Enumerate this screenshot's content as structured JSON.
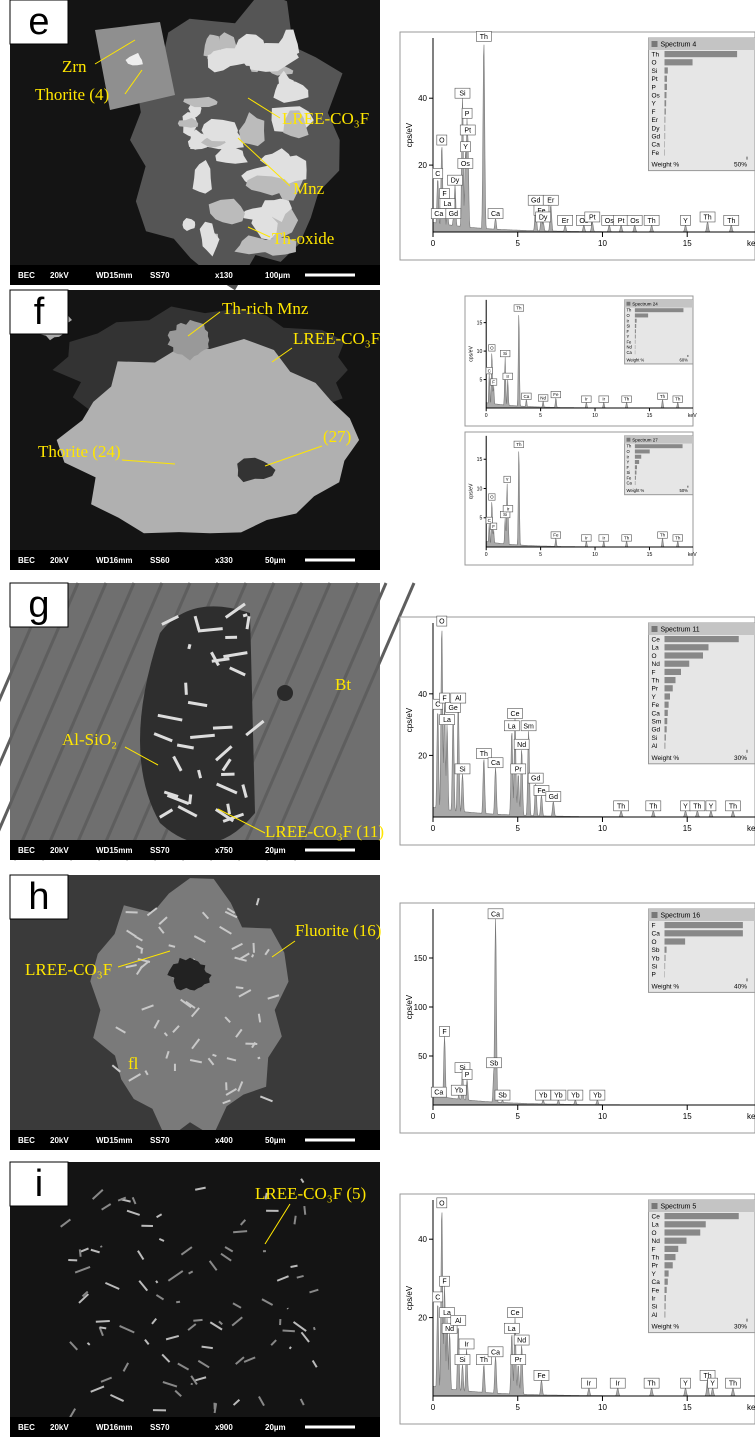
{
  "panels": [
    {
      "letter": "e",
      "image": {
        "labels": [
          "Zrn",
          "Thorite (4)",
          "LREE-CO₃F",
          "Mnz",
          "Th-oxide"
        ],
        "footer": [
          "BEC",
          "20kV",
          "WD15mm",
          "SS70",
          "x130",
          "100µm"
        ]
      },
      "spectra": [
        {
          "title": "Spectrum 4",
          "ylabel": "cps/eV",
          "xunit": "keV",
          "xlim": [
            0,
            19
          ],
          "xticks": [
            0,
            5,
            10,
            15
          ],
          "ylim": [
            0,
            58
          ],
          "yticks": [
            20,
            40
          ],
          "peaks": [
            {
              "label": "C",
              "x": 0.28,
              "y": 16
            },
            {
              "label": "O",
              "x": 0.52,
              "y": 26
            },
            {
              "label": "F",
              "x": 0.68,
              "y": 10
            },
            {
              "label": "La",
              "x": 0.85,
              "y": 7
            },
            {
              "label": "Ca",
              "x": 0.34,
              "y": 4
            },
            {
              "label": "Gd",
              "x": 1.2,
              "y": 4
            },
            {
              "label": "Dy",
              "x": 1.3,
              "y": 14
            },
            {
              "label": "Si",
              "x": 1.74,
              "y": 40
            },
            {
              "label": "P",
              "x": 2.01,
              "y": 34
            },
            {
              "label": "Pt",
              "x": 2.05,
              "y": 29
            },
            {
              "label": "Y",
              "x": 1.92,
              "y": 24
            },
            {
              "label": "Os",
              "x": 1.91,
              "y": 19
            },
            {
              "label": "Th",
              "x": 3.0,
              "y": 57
            },
            {
              "label": "Ca",
              "x": 3.69,
              "y": 4
            },
            {
              "label": "Gd",
              "x": 6.06,
              "y": 8
            },
            {
              "label": "Er",
              "x": 6.95,
              "y": 8
            },
            {
              "label": "Fe",
              "x": 6.4,
              "y": 5
            },
            {
              "label": "Dy",
              "x": 6.5,
              "y": 3
            },
            {
              "label": "Er",
              "x": 7.8,
              "y": 2
            },
            {
              "label": "Os",
              "x": 8.9,
              "y": 2
            },
            {
              "label": "Pt",
              "x": 9.4,
              "y": 3
            },
            {
              "label": "Os",
              "x": 10.4,
              "y": 2
            },
            {
              "label": "Pt",
              "x": 11.1,
              "y": 2
            },
            {
              "label": "Os",
              "x": 11.9,
              "y": 2
            },
            {
              "label": "Th",
              "x": 12.9,
              "y": 2
            },
            {
              "label": "Y",
              "x": 14.9,
              "y": 2
            },
            {
              "label": "Th",
              "x": 16.2,
              "y": 3
            },
            {
              "label": "Th",
              "x": 17.6,
              "y": 2
            }
          ],
          "elements": [
            "Th",
            "O",
            "Si",
            "Pt",
            "P",
            "Os",
            "Y",
            "F",
            "Er",
            "Dy",
            "Gd",
            "Ca",
            "Fe"
          ],
          "weights": [
            44,
            17,
            2,
            1.5,
            1.5,
            1.2,
            1,
            0.8,
            0.5,
            0.4,
            0.4,
            0.3,
            0.3
          ],
          "weight_label": "Weight %",
          "weight_scale": {
            "value": 50,
            "label": "50%"
          }
        }
      ]
    },
    {
      "letter": "f",
      "image": {
        "labels": [
          "Th-rich Mnz",
          "LREE-CO₃F",
          "Thorite (24)",
          "(27)"
        ],
        "footer": [
          "BEC",
          "20kV",
          "WD16mm",
          "SS60",
          "x330",
          "50µm"
        ]
      },
      "spectra": [
        {
          "title": "Spectrum 24",
          "ylabel": "cps/eV",
          "xunit": "keV",
          "xlim": [
            0,
            19
          ],
          "xticks": [
            0,
            5,
            10,
            15
          ],
          "ylim": [
            0,
            19
          ],
          "yticks": [
            5,
            10,
            15
          ],
          "peaks": [
            {
              "label": "C",
              "x": 0.28,
              "y": 6
            },
            {
              "label": "O",
              "x": 0.52,
              "y": 10
            },
            {
              "label": "F",
              "x": 0.68,
              "y": 4
            },
            {
              "label": "Si",
              "x": 1.74,
              "y": 9
            },
            {
              "label": "Ir",
              "x": 1.98,
              "y": 5
            },
            {
              "label": "Th",
              "x": 3.0,
              "y": 17
            },
            {
              "label": "Ca",
              "x": 3.69,
              "y": 1.5
            },
            {
              "label": "Nd",
              "x": 5.23,
              "y": 1.2
            },
            {
              "label": "Fe",
              "x": 6.4,
              "y": 1.8
            },
            {
              "label": "Ir",
              "x": 9.2,
              "y": 1
            },
            {
              "label": "Ir",
              "x": 10.8,
              "y": 1
            },
            {
              "label": "Th",
              "x": 12.9,
              "y": 1
            },
            {
              "label": "Th",
              "x": 16.2,
              "y": 1.5
            },
            {
              "label": "Th",
              "x": 17.6,
              "y": 1
            }
          ],
          "elements": [
            "Th",
            "O",
            "Ir",
            "Si",
            "F",
            "Y",
            "Fe",
            "Nd",
            "Ca"
          ],
          "weights": [
            55,
            15,
            2,
            1.5,
            1.2,
            1,
            0.6,
            0.5,
            0.4
          ],
          "weight_label": "Weight %",
          "weight_scale": {
            "value": 60,
            "label": "60%"
          }
        },
        {
          "title": "Spectrum 27",
          "ylabel": "cps/eV",
          "xunit": "keV",
          "xlim": [
            0,
            19
          ],
          "xticks": [
            0,
            5,
            10,
            15
          ],
          "ylim": [
            0,
            19
          ],
          "yticks": [
            5,
            10,
            15
          ],
          "peaks": [
            {
              "label": "C",
              "x": 0.28,
              "y": 4
            },
            {
              "label": "O",
              "x": 0.52,
              "y": 8
            },
            {
              "label": "F",
              "x": 0.68,
              "y": 3
            },
            {
              "label": "Si",
              "x": 1.74,
              "y": 5
            },
            {
              "label": "Y",
              "x": 1.92,
              "y": 11
            },
            {
              "label": "Ir",
              "x": 2.0,
              "y": 6
            },
            {
              "label": "Th",
              "x": 3.0,
              "y": 17
            },
            {
              "label": "Fe",
              "x": 6.4,
              "y": 1.5
            },
            {
              "label": "Ir",
              "x": 9.2,
              "y": 1
            },
            {
              "label": "Ir",
              "x": 10.8,
              "y": 1
            },
            {
              "label": "Th",
              "x": 12.9,
              "y": 1
            },
            {
              "label": "Th",
              "x": 16.2,
              "y": 1.5
            },
            {
              "label": "Th",
              "x": 17.6,
              "y": 1
            }
          ],
          "elements": [
            "Th",
            "O",
            "Ir",
            "Y",
            "F",
            "Si",
            "Fe",
            "Ca"
          ],
          "weights": [
            45,
            14,
            6,
            4,
            2,
            1.5,
            1,
            0.5
          ],
          "weight_label": "Weight %",
          "weight_scale": {
            "value": 50,
            "label": "50%"
          }
        }
      ]
    },
    {
      "letter": "g",
      "image": {
        "labels": [
          "Bt",
          "Al-SiO₂",
          "LREE-CO₃F (11)"
        ],
        "footer": [
          "BEC",
          "20kV",
          "WD15mm",
          "SS70",
          "x750",
          "20µm"
        ]
      },
      "spectra": [
        {
          "title": "Spectrum 11",
          "ylabel": "cps/eV",
          "xunit": "keV",
          "xlim": [
            0,
            19
          ],
          "xticks": [
            0,
            5,
            10,
            15
          ],
          "ylim": [
            0,
            63
          ],
          "yticks": [
            20,
            40
          ],
          "peaks": [
            {
              "label": "C",
              "x": 0.28,
              "y": 35
            },
            {
              "label": "O",
              "x": 0.52,
              "y": 62
            },
            {
              "label": "F",
              "x": 0.68,
              "y": 37
            },
            {
              "label": "La",
              "x": 0.83,
              "y": 30
            },
            {
              "label": "Ge",
              "x": 1.19,
              "y": 34
            },
            {
              "label": "Al",
              "x": 1.49,
              "y": 37
            },
            {
              "label": "Si",
              "x": 1.74,
              "y": 14
            },
            {
              "label": "Th",
              "x": 3.0,
              "y": 19
            },
            {
              "label": "Ca",
              "x": 3.69,
              "y": 16
            },
            {
              "label": "La",
              "x": 4.65,
              "y": 28
            },
            {
              "label": "Ce",
              "x": 4.84,
              "y": 32
            },
            {
              "label": "Pr",
              "x": 5.03,
              "y": 14
            },
            {
              "label": "Nd",
              "x": 5.23,
              "y": 22
            },
            {
              "label": "Sm",
              "x": 5.64,
              "y": 28
            },
            {
              "label": "Gd",
              "x": 6.06,
              "y": 11
            },
            {
              "label": "Fe",
              "x": 6.4,
              "y": 7
            },
            {
              "label": "Gd",
              "x": 7.1,
              "y": 5
            },
            {
              "label": "Th",
              "x": 11.1,
              "y": 2
            },
            {
              "label": "Th",
              "x": 13.0,
              "y": 2
            },
            {
              "label": "Y",
              "x": 14.9,
              "y": 2
            },
            {
              "label": "Th",
              "x": 15.6,
              "y": 2
            },
            {
              "label": "Y",
              "x": 16.4,
              "y": 2
            },
            {
              "label": "Th",
              "x": 17.7,
              "y": 2
            }
          ],
          "elements": [
            "Ce",
            "La",
            "O",
            "Nd",
            "F",
            "Th",
            "Pr",
            "Y",
            "Fe",
            "Ca",
            "Sm",
            "Gd",
            "Si",
            "Al"
          ],
          "weights": [
            27,
            16,
            14,
            9,
            6,
            4,
            3,
            2,
            1.5,
            1.2,
            1,
            0.8,
            0.5,
            0.3
          ],
          "weight_label": "Weight %",
          "weight_scale": {
            "value": 30,
            "label": "30%"
          }
        }
      ]
    },
    {
      "letter": "h",
      "image": {
        "labels": [
          "Fluorite (16)",
          "LREE-CO₃F",
          "fl"
        ],
        "footer": [
          "BEC",
          "20kV",
          "WD15mm",
          "SS70",
          "x400",
          "50µm"
        ]
      },
      "spectra": [
        {
          "title": "Spectrum 16",
          "ylabel": "cps/eV",
          "xunit": "keV",
          "xlim": [
            0,
            19
          ],
          "xticks": [
            0,
            5,
            10,
            15
          ],
          "ylim": [
            0,
            200
          ],
          "yticks": [
            50,
            100,
            150
          ],
          "peaks": [
            {
              "label": "Ca",
              "x": 0.34,
              "y": 8
            },
            {
              "label": "F",
              "x": 0.68,
              "y": 70
            },
            {
              "label": "Yb",
              "x": 1.52,
              "y": 10
            },
            {
              "label": "Si",
              "x": 1.74,
              "y": 33
            },
            {
              "label": "P",
              "x": 2.01,
              "y": 26
            },
            {
              "label": "Ca",
              "x": 3.69,
              "y": 190
            },
            {
              "label": "Sb",
              "x": 3.6,
              "y": 38
            },
            {
              "label": "Sb",
              "x": 4.1,
              "y": 5
            },
            {
              "label": "Yb",
              "x": 6.5,
              "y": 5
            },
            {
              "label": "Yb",
              "x": 7.4,
              "y": 5
            },
            {
              "label": "Yb",
              "x": 8.4,
              "y": 5
            },
            {
              "label": "Yb",
              "x": 9.7,
              "y": 5
            }
          ],
          "elements": [
            "F",
            "Ca",
            "O",
            "Sb",
            "Yb",
            "Si",
            "P"
          ],
          "weights": [
            38,
            38,
            10,
            1,
            0.5,
            0.3,
            0.2
          ],
          "weight_label": "Weight %",
          "weight_scale": {
            "value": 40,
            "label": "40%"
          }
        }
      ]
    },
    {
      "letter": "i",
      "image": {
        "labels": [
          "LREE-CO₃F (5)"
        ],
        "footer": [
          "BEC",
          "20kV",
          "WD16mm",
          "SS70",
          "x900",
          "20µm"
        ]
      },
      "spectra": [
        {
          "title": "Spectrum 5",
          "ylabel": "cps/eV",
          "xunit": "keV",
          "xlim": [
            0,
            19
          ],
          "xticks": [
            0,
            5,
            10,
            15
          ],
          "ylim": [
            0,
            50
          ],
          "yticks": [
            20,
            40
          ],
          "peaks": [
            {
              "label": "C",
              "x": 0.28,
              "y": 24
            },
            {
              "label": "O",
              "x": 0.52,
              "y": 48
            },
            {
              "label": "F",
              "x": 0.68,
              "y": 28
            },
            {
              "label": "La",
              "x": 0.83,
              "y": 20
            },
            {
              "label": "Nd",
              "x": 0.98,
              "y": 16
            },
            {
              "label": "Al",
              "x": 1.49,
              "y": 18
            },
            {
              "label": "Si",
              "x": 1.74,
              "y": 8
            },
            {
              "label": "Ir",
              "x": 1.98,
              "y": 12
            },
            {
              "label": "Th",
              "x": 3.0,
              "y": 8
            },
            {
              "label": "Ca",
              "x": 3.69,
              "y": 10
            },
            {
              "label": "La",
              "x": 4.65,
              "y": 16
            },
            {
              "label": "Ce",
              "x": 4.84,
              "y": 20
            },
            {
              "label": "Pr",
              "x": 5.03,
              "y": 8
            },
            {
              "label": "Nd",
              "x": 5.23,
              "y": 13
            },
            {
              "label": "Fe",
              "x": 6.4,
              "y": 4
            },
            {
              "label": "Ir",
              "x": 9.2,
              "y": 2
            },
            {
              "label": "Ir",
              "x": 10.9,
              "y": 2
            },
            {
              "label": "Th",
              "x": 12.9,
              "y": 2
            },
            {
              "label": "Y",
              "x": 14.9,
              "y": 2
            },
            {
              "label": "Th",
              "x": 16.2,
              "y": 4
            },
            {
              "label": "Y",
              "x": 16.5,
              "y": 2
            },
            {
              "label": "Th",
              "x": 17.7,
              "y": 2
            }
          ],
          "elements": [
            "Ce",
            "La",
            "O",
            "Nd",
            "F",
            "Th",
            "Pr",
            "Y",
            "Ca",
            "Fe",
            "Ir",
            "Si",
            "Al"
          ],
          "weights": [
            27,
            15,
            13,
            8,
            5,
            4,
            3,
            1.5,
            1.2,
            0.8,
            0.5,
            0.4,
            0.3
          ],
          "weight_label": "Weight %",
          "weight_scale": {
            "value": 30,
            "label": "30%"
          }
        }
      ]
    }
  ]
}
